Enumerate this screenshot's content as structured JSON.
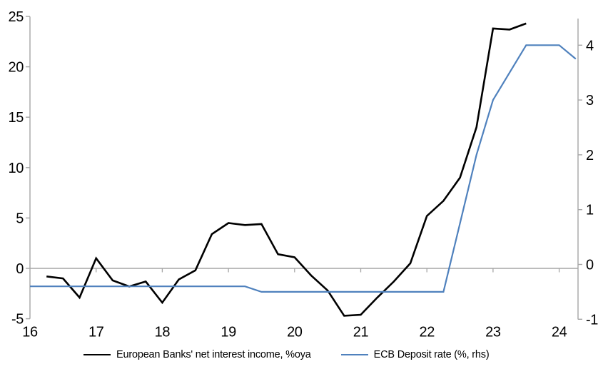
{
  "chart_data": {
    "type": "line",
    "title": "",
    "x_axis": {
      "label": "",
      "tick_labels": [
        "16",
        "17",
        "18",
        "19",
        "20",
        "21",
        "22",
        "23",
        "24"
      ],
      "tick_years": [
        16,
        17,
        18,
        19,
        20,
        21,
        22,
        23,
        24
      ],
      "range": [
        16,
        24.3
      ]
    },
    "y_left_axis": {
      "label": "",
      "ticks": [
        25,
        20,
        15,
        10,
        5,
        0,
        -5
      ],
      "range": [
        -5,
        25
      ]
    },
    "y_right_axis": {
      "label": "",
      "ticks": [
        4,
        3,
        2,
        1,
        0,
        -1
      ],
      "range": [
        -1.05,
        4.5
      ]
    },
    "grid": "zero-line-only",
    "legend_position": "bottom",
    "series": [
      {
        "name": "European Banks' net interest income, %oya",
        "axis": "left",
        "color": "#000000",
        "stroke_width": 2.6,
        "points": [
          [
            16.25,
            -0.8
          ],
          [
            16.5,
            -1.0
          ],
          [
            16.75,
            -2.9
          ],
          [
            17.0,
            1.0
          ],
          [
            17.25,
            -1.2
          ],
          [
            17.5,
            -1.8
          ],
          [
            17.75,
            -1.3
          ],
          [
            18.0,
            -3.4
          ],
          [
            18.25,
            -1.1
          ],
          [
            18.5,
            -0.2
          ],
          [
            18.75,
            3.4
          ],
          [
            19.0,
            4.5
          ],
          [
            19.25,
            4.3
          ],
          [
            19.5,
            4.4
          ],
          [
            19.75,
            1.4
          ],
          [
            20.0,
            1.1
          ],
          [
            20.25,
            -0.7
          ],
          [
            20.5,
            -2.2
          ],
          [
            20.75,
            -4.7
          ],
          [
            21.0,
            -4.6
          ],
          [
            21.25,
            -2.9
          ],
          [
            21.5,
            -1.3
          ],
          [
            21.75,
            0.5
          ],
          [
            22.0,
            5.2
          ],
          [
            22.25,
            6.7
          ],
          [
            22.5,
            9.0
          ],
          [
            22.75,
            14.0
          ],
          [
            23.0,
            23.8
          ],
          [
            23.25,
            23.7
          ],
          [
            23.5,
            24.3
          ]
        ]
      },
      {
        "name": "ECB Deposit rate (%, rhs)",
        "axis": "right",
        "color": "#4f81bd",
        "stroke_width": 2.2,
        "points": [
          [
            16.0,
            -0.4
          ],
          [
            19.25,
            -0.4
          ],
          [
            19.5,
            -0.5
          ],
          [
            22.25,
            -0.5
          ],
          [
            22.5,
            0.75
          ],
          [
            22.75,
            2.0
          ],
          [
            23.0,
            3.0
          ],
          [
            23.25,
            3.5
          ],
          [
            23.5,
            4.0
          ],
          [
            24.0,
            4.0
          ],
          [
            24.25,
            3.75
          ]
        ]
      }
    ]
  },
  "colors": {
    "axis": "#a6a6a6",
    "zero_line": "#a6a6a6",
    "text": "#000000",
    "background": "#ffffff",
    "nii_line": "#000000",
    "deposit_rate_line": "#4f81bd"
  }
}
